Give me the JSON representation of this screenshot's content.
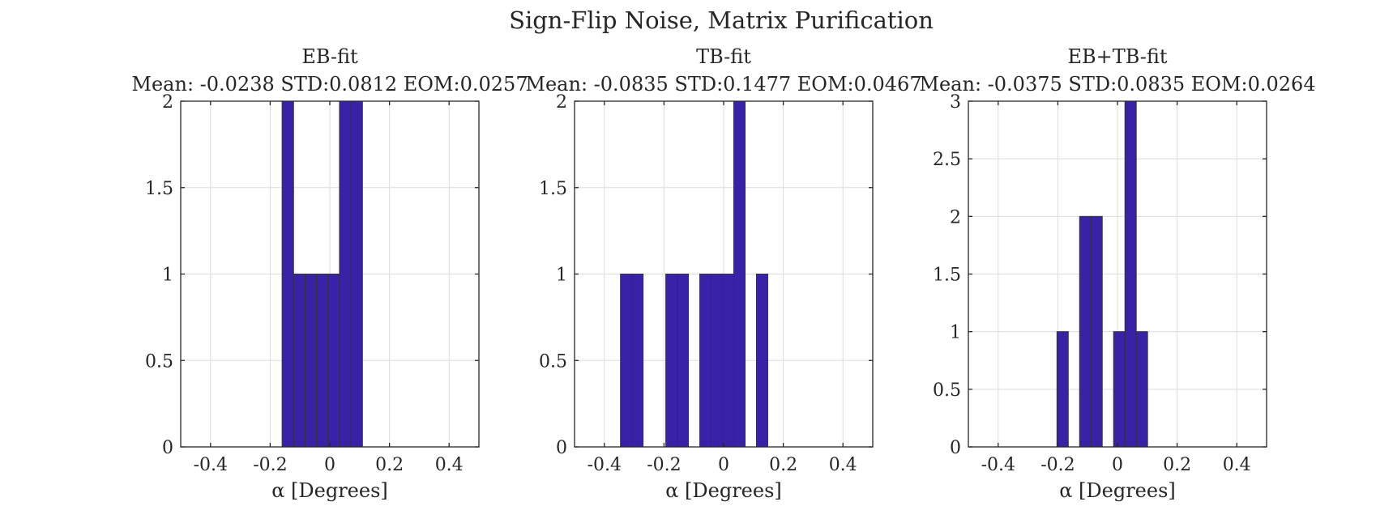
{
  "figure_title": "Sign-Flip Noise, Matrix Purification",
  "colors": {
    "bar_fill": "#3a22a8",
    "bar_edge": "#333333",
    "grid": "#dcdcdc",
    "axis": "#262626"
  },
  "chart_data": [
    {
      "type": "bar",
      "title": "EB-fit",
      "subtitle": "Mean: -0.0238 STD:0.0812 EOM:0.0257",
      "xlabel": "α [Degrees]",
      "ylabel": "",
      "xlim": [
        -0.5,
        0.5
      ],
      "ylim": [
        0,
        2
      ],
      "xticks": [
        -0.4,
        -0.2,
        0,
        0.2,
        0.4
      ],
      "xtick_labels": [
        "-0.4",
        "-0.2",
        "0",
        "0.2",
        "0.4"
      ],
      "yticks": [
        0,
        0.5,
        1,
        1.5,
        2
      ],
      "ytick_labels": [
        "0",
        "0.5",
        "1",
        "1.5",
        "2"
      ],
      "grid": true,
      "bin_width": 0.0385,
      "bins": [
        {
          "left": -0.16,
          "count": 2
        },
        {
          "left": -0.1215,
          "count": 1
        },
        {
          "left": -0.083,
          "count": 1
        },
        {
          "left": -0.0445,
          "count": 1
        },
        {
          "left": -0.006,
          "count": 1
        },
        {
          "left": 0.0325,
          "count": 2
        },
        {
          "left": 0.071,
          "count": 2
        }
      ]
    },
    {
      "type": "bar",
      "title": "TB-fit",
      "subtitle": "Mean: -0.0835 STD:0.1477 EOM:0.0467",
      "xlabel": "α [Degrees]",
      "ylabel": "",
      "xlim": [
        -0.5,
        0.5
      ],
      "ylim": [
        0,
        2
      ],
      "xticks": [
        -0.4,
        -0.2,
        0,
        0.2,
        0.4
      ],
      "xtick_labels": [
        "-0.4",
        "-0.2",
        "0",
        "0.2",
        "0.4"
      ],
      "yticks": [
        0,
        0.5,
        1,
        1.5,
        2
      ],
      "ytick_labels": [
        "0",
        "0.5",
        "1",
        "1.5",
        "2"
      ],
      "grid": true,
      "bin_width": 0.038,
      "bins": [
        {
          "left": -0.346,
          "count": 1
        },
        {
          "left": -0.308,
          "count": 1
        },
        {
          "left": -0.194,
          "count": 1
        },
        {
          "left": -0.156,
          "count": 1
        },
        {
          "left": -0.08,
          "count": 1
        },
        {
          "left": -0.042,
          "count": 1
        },
        {
          "left": -0.004,
          "count": 1
        },
        {
          "left": 0.034,
          "count": 2
        },
        {
          "left": 0.11,
          "count": 1
        }
      ]
    },
    {
      "type": "bar",
      "title": "EB+TB-fit",
      "subtitle": "Mean: -0.0375 STD:0.0835 EOM:0.0264",
      "xlabel": "α [Degrees]",
      "ylabel": "",
      "xlim": [
        -0.5,
        0.5
      ],
      "ylim": [
        0,
        3
      ],
      "xticks": [
        -0.4,
        -0.2,
        0,
        0.2,
        0.4
      ],
      "xtick_labels": [
        "-0.4",
        "-0.2",
        "0",
        "0.2",
        "0.4"
      ],
      "yticks": [
        0,
        0.5,
        1,
        1.5,
        2,
        2.5,
        3
      ],
      "ytick_labels": [
        "0",
        "0.5",
        "1",
        "1.5",
        "2",
        "2.5",
        "3"
      ],
      "grid": true,
      "bin_width": 0.038,
      "bins": [
        {
          "left": -0.203,
          "count": 1
        },
        {
          "left": -0.127,
          "count": 2
        },
        {
          "left": -0.089,
          "count": 2
        },
        {
          "left": -0.013,
          "count": 1
        },
        {
          "left": 0.025,
          "count": 3
        },
        {
          "left": 0.063,
          "count": 1
        }
      ]
    }
  ]
}
